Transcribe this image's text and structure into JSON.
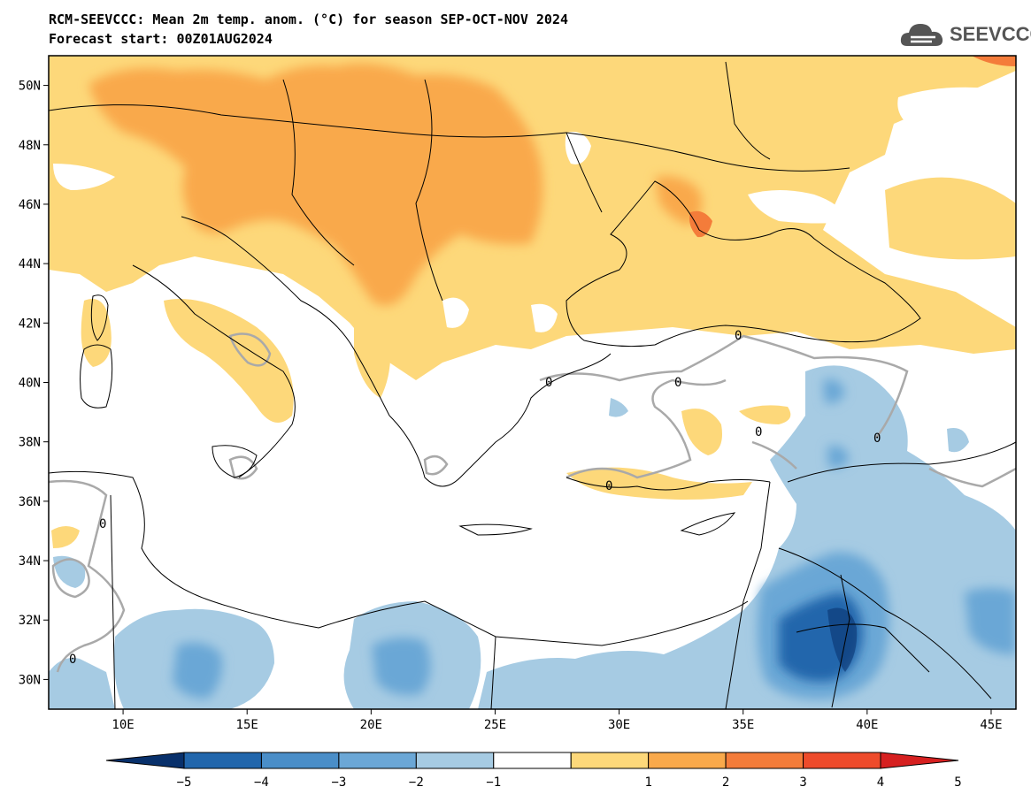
{
  "title": {
    "line1": "RCM-SEEVCCC: Mean 2m temp. anom. (°C) for season SEP-OCT-NOV 2024",
    "line2": "Forecast start: 00Z01AUG2024"
  },
  "logo": {
    "text": "SEEVCCC",
    "icon": "cloud-icon"
  },
  "map": {
    "lon_range": [
      7,
      46
    ],
    "lat_range": [
      29,
      51
    ],
    "lat_ticks": [
      "50N",
      "48N",
      "46N",
      "44N",
      "42N",
      "40N",
      "38N",
      "36N",
      "34N",
      "32N",
      "30N"
    ],
    "lat_tick_values": [
      50,
      48,
      46,
      44,
      42,
      40,
      38,
      36,
      34,
      32,
      30
    ],
    "lon_ticks": [
      "10E",
      "15E",
      "20E",
      "25E",
      "30E",
      "35E",
      "40E",
      "45E"
    ],
    "lon_tick_values": [
      10,
      15,
      20,
      25,
      30,
      35,
      40,
      45
    ],
    "contour_zero_label": "0"
  },
  "colorbar": {
    "labels": [
      "−5",
      "−4",
      "−3",
      "−2",
      "−1",
      "1",
      "2",
      "3",
      "4",
      "5"
    ],
    "colors": [
      "#08306b",
      "#2166ac",
      "#4a8ec8",
      "#6ba7d6",
      "#a6cbe3",
      "#ffffff",
      "#fdd87a",
      "#f9a94b",
      "#f47c3a",
      "#ee4b2b",
      "#d62020"
    ]
  }
}
